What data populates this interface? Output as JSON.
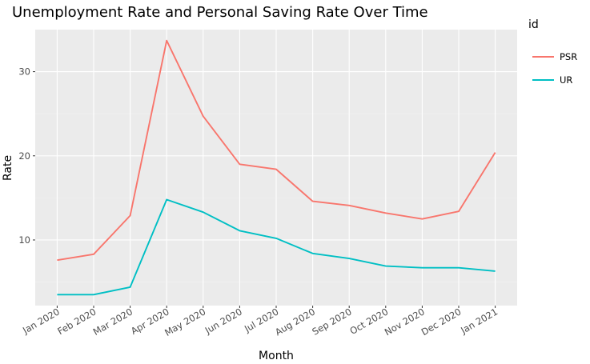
{
  "chart_data": {
    "type": "line",
    "title": "Unemployment Rate and Personal Saving Rate Over Time",
    "xlabel": "Month",
    "ylabel": "Rate",
    "categories": [
      "Jan 2020",
      "Feb 2020",
      "Mar 2020",
      "Apr 2020",
      "May 2020",
      "Jun 2020",
      "Jul 2020",
      "Aug 2020",
      "Sep 2020",
      "Oct 2020",
      "Nov 2020",
      "Dec 2020",
      "Jan 2021"
    ],
    "yticks": [
      10,
      20,
      30
    ],
    "ylim": [
      2.2,
      35.0
    ],
    "grid": true,
    "legend": {
      "title": "id",
      "placement": "right"
    },
    "series": [
      {
        "name": "PSR",
        "color": "#F8766D",
        "values": [
          7.6,
          8.3,
          12.9,
          33.7,
          24.7,
          19.0,
          18.4,
          14.6,
          14.1,
          13.2,
          12.5,
          13.4,
          20.4
        ]
      },
      {
        "name": "UR",
        "color": "#00BFC4",
        "values": [
          3.5,
          3.5,
          4.4,
          14.8,
          13.3,
          11.1,
          10.2,
          8.4,
          7.8,
          6.9,
          6.7,
          6.7,
          6.3
        ]
      }
    ]
  }
}
